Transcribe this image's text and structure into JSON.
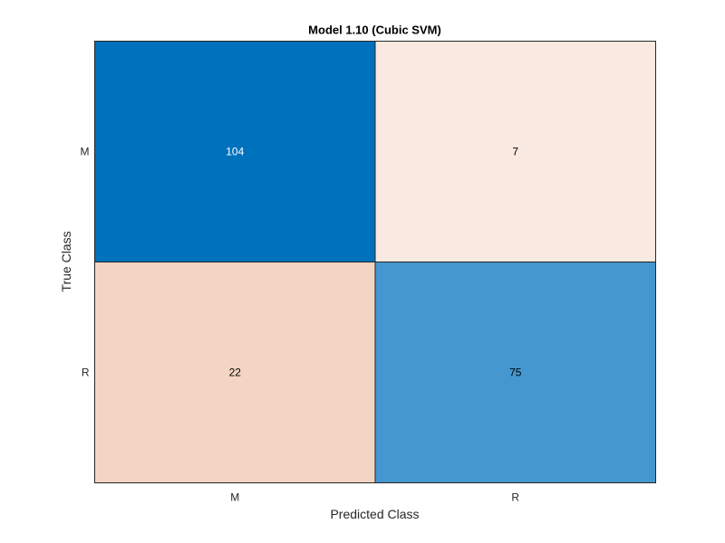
{
  "chart_data": {
    "type": "heatmap",
    "title": "Model 1.10 (Cubic SVM)",
    "xlabel": "Predicted Class",
    "ylabel": "True Class",
    "x_categories": [
      "M",
      "R"
    ],
    "y_categories": [
      "M",
      "R"
    ],
    "values": [
      [
        104,
        7
      ],
      [
        22,
        75
      ]
    ],
    "colors": {
      "diagonal_max": "#0072bd",
      "diagonal_mid": "#4497cf",
      "offdiag_low": "#f9e9e1",
      "offdiag_mid": "#f4d4c3",
      "border": "#262626",
      "text_dark": "#000000",
      "text_light": "#ffffff"
    },
    "grid": true,
    "legend": "none"
  }
}
